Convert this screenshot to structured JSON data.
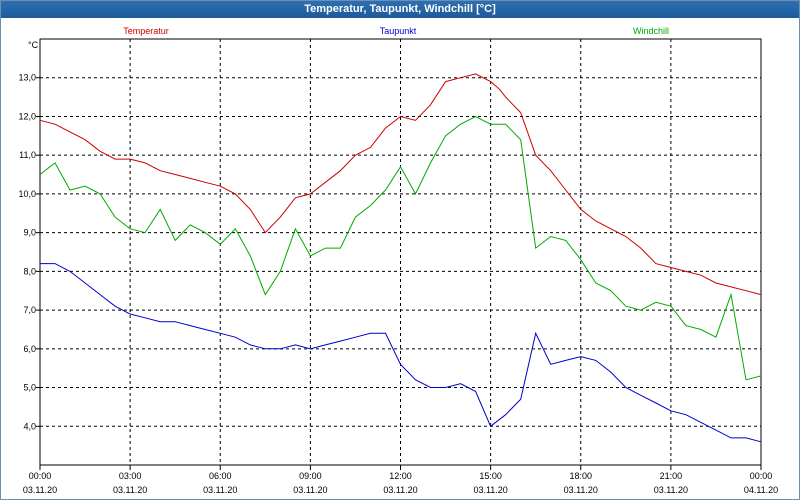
{
  "window": {
    "title": "Temperatur, Taupunkt, Windchill [°C]"
  },
  "chart_data": {
    "type": "line",
    "title": "Temperatur, Taupunkt, Windchill [°C]",
    "ylabel": "°C",
    "xlabel": "",
    "ylim": [
      3.0,
      14.0
    ],
    "xlim": [
      0,
      24
    ],
    "grid": true,
    "legend": "top",
    "y_ticks": [
      "4,0",
      "5,0",
      "6,0",
      "7,0",
      "8,0",
      "9,0",
      "10,0",
      "11,0",
      "12,0",
      "13,0"
    ],
    "y_tick_values": [
      4,
      5,
      6,
      7,
      8,
      9,
      10,
      11,
      12,
      13
    ],
    "x_ticks": [
      {
        "x": 0,
        "time": "00:00",
        "date": "03.11.20"
      },
      {
        "x": 3,
        "time": "03:00",
        "date": "03.11.20"
      },
      {
        "x": 6,
        "time": "06:00",
        "date": "03.11.20"
      },
      {
        "x": 9,
        "time": "09:00",
        "date": "03.11.20"
      },
      {
        "x": 12,
        "time": "12:00",
        "date": "03.11.20"
      },
      {
        "x": 15,
        "time": "15:00",
        "date": "03.11.20"
      },
      {
        "x": 18,
        "time": "18:00",
        "date": "03.11.20"
      },
      {
        "x": 21,
        "time": "21:00",
        "date": "03.11.20"
      },
      {
        "x": 24,
        "time": "00:00",
        "date": "04.11.20"
      }
    ],
    "series": [
      {
        "name": "Temperatur",
        "color": "#cc0000",
        "x": [
          0,
          0.5,
          1,
          1.5,
          2,
          2.5,
          3,
          3.5,
          4,
          4.5,
          5,
          5.5,
          6,
          6.5,
          7,
          7.5,
          8,
          8.5,
          9,
          9.5,
          10,
          10.5,
          11,
          11.5,
          12,
          12.5,
          13,
          13.5,
          14,
          14.5,
          15,
          15.3,
          15.5,
          16,
          16.5,
          17,
          17.5,
          18,
          18.5,
          19,
          19.5,
          20,
          20.5,
          21,
          21.5,
          22,
          22.5,
          23,
          23.5,
          24
        ],
        "y": [
          11.9,
          11.8,
          11.6,
          11.4,
          11.1,
          10.9,
          10.9,
          10.8,
          10.6,
          10.5,
          10.4,
          10.3,
          10.2,
          10.0,
          9.6,
          9.0,
          9.4,
          9.9,
          10.0,
          10.3,
          10.6,
          11.0,
          11.2,
          11.7,
          12.0,
          11.9,
          12.3,
          12.9,
          13.0,
          13.1,
          12.9,
          12.7,
          12.5,
          12.1,
          11.0,
          10.6,
          10.1,
          9.6,
          9.3,
          9.1,
          8.9,
          8.6,
          8.2,
          8.1,
          8.0,
          7.9,
          7.7,
          7.6,
          7.5,
          7.4
        ]
      },
      {
        "name": "Taupunkt",
        "color": "#0000cc",
        "x": [
          0,
          0.5,
          1,
          1.5,
          2,
          2.5,
          3,
          3.5,
          4,
          4.5,
          5,
          5.5,
          6,
          6.5,
          7,
          7.5,
          8,
          8.5,
          9,
          9.5,
          10,
          10.5,
          11,
          11.5,
          12,
          12.5,
          13,
          13.5,
          14,
          14.5,
          15,
          15.5,
          16,
          16.5,
          17,
          17.5,
          18,
          18.5,
          19,
          19.5,
          20,
          20.5,
          21,
          21.5,
          22,
          22.5,
          23,
          23.5,
          24
        ],
        "y": [
          8.2,
          8.2,
          8.0,
          7.7,
          7.4,
          7.1,
          6.9,
          6.8,
          6.7,
          6.7,
          6.6,
          6.5,
          6.4,
          6.3,
          6.1,
          6.0,
          6.0,
          6.1,
          6.0,
          6.1,
          6.2,
          6.3,
          6.4,
          6.4,
          5.6,
          5.2,
          5.0,
          5.0,
          5.1,
          4.9,
          4.0,
          4.3,
          4.7,
          6.4,
          5.6,
          5.7,
          5.8,
          5.7,
          5.4,
          5.0,
          4.8,
          4.6,
          4.4,
          4.3,
          4.1,
          3.9,
          3.7,
          3.7,
          3.6
        ]
      },
      {
        "name": "Windchill",
        "color": "#00aa00",
        "x": [
          0,
          0.5,
          1,
          1.5,
          2,
          2.5,
          3,
          3.5,
          4,
          4.5,
          5,
          5.5,
          6,
          6.5,
          7,
          7.5,
          8,
          8.5,
          9,
          9.5,
          10,
          10.5,
          11,
          11.5,
          12,
          12.5,
          13,
          13.5,
          14,
          14.5,
          15,
          15.5,
          16,
          16.5,
          17,
          17.5,
          18,
          18.5,
          19,
          19.5,
          20,
          20.5,
          21,
          21.5,
          22,
          22.5,
          23,
          23.5,
          24
        ],
        "y": [
          10.5,
          10.8,
          10.1,
          10.2,
          10.0,
          9.4,
          9.1,
          9.0,
          9.6,
          8.8,
          9.2,
          9.0,
          8.7,
          9.1,
          8.4,
          7.4,
          8.0,
          9.1,
          8.4,
          8.6,
          8.6,
          9.4,
          9.7,
          10.1,
          10.7,
          10.0,
          10.8,
          11.5,
          11.8,
          12.0,
          11.8,
          11.8,
          11.4,
          8.6,
          8.9,
          8.8,
          8.3,
          7.7,
          7.5,
          7.1,
          7.0,
          7.2,
          7.1,
          6.6,
          6.5,
          6.3,
          7.4,
          5.2,
          5.3
        ]
      }
    ]
  }
}
